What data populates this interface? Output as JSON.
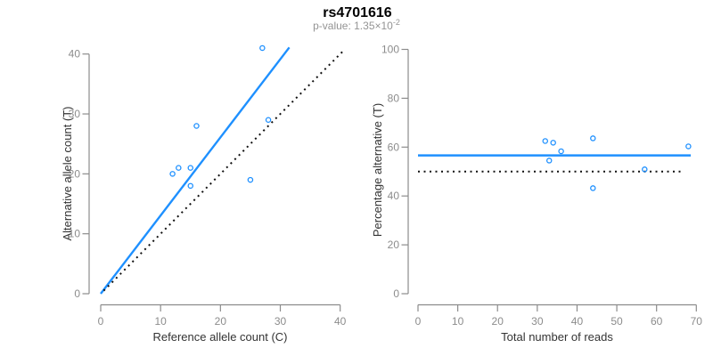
{
  "title": "rs4701616",
  "subtitle": {
    "main": "p-value: 1.35×10",
    "exponent": "-2"
  },
  "colors": {
    "accent_blue": "#1E90FF",
    "dotted_black": "#111111",
    "axis_gray": "#8C8C8C",
    "tick_label_gray": "#8C8C8C",
    "axis_label_dark": "#333333",
    "title_black": "#000000",
    "subtitle_gray": "#949494",
    "background": "#FFFFFF"
  },
  "chart_data": [
    {
      "type": "scatter",
      "panel": "left",
      "xlabel": "Reference allele count (C)",
      "ylabel": "Alternative allele count (T)",
      "xlim": [
        0,
        40
      ],
      "ylim": [
        0,
        40
      ],
      "xticks": [
        0,
        10,
        20,
        30,
        40
      ],
      "yticks": [
        0,
        10,
        20,
        30,
        40
      ],
      "grid": false,
      "legend": null,
      "points": [
        [
          12,
          20
        ],
        [
          13,
          21
        ],
        [
          15,
          21
        ],
        [
          15,
          18
        ],
        [
          16,
          28
        ],
        [
          25,
          19
        ],
        [
          27,
          41
        ],
        [
          28,
          29
        ]
      ],
      "lines": [
        {
          "name": "fit",
          "style": "solid",
          "color": "blue",
          "x1": 0,
          "y1": 0,
          "x2": 31.5,
          "y2": 41.1
        },
        {
          "name": "identity",
          "style": "dotted",
          "color": "black",
          "x1": 0.5,
          "y1": 0.5,
          "x2": 40.7,
          "y2": 40.7
        }
      ]
    },
    {
      "type": "scatter",
      "panel": "right",
      "xlabel": "Total number of reads",
      "ylabel": "Percentage alternative (T)",
      "xlim": [
        0,
        70
      ],
      "ylim": [
        0,
        100
      ],
      "xticks": [
        0,
        10,
        20,
        30,
        40,
        50,
        60,
        70
      ],
      "yticks": [
        0,
        20,
        40,
        60,
        80,
        100
      ],
      "grid": false,
      "legend": null,
      "points": [
        [
          32,
          62.5
        ],
        [
          33,
          54.5
        ],
        [
          34,
          61.8
        ],
        [
          36,
          58.3
        ],
        [
          44,
          63.6
        ],
        [
          44,
          43.2
        ],
        [
          57,
          50.9
        ],
        [
          68,
          60.3
        ]
      ],
      "lines": [
        {
          "name": "fit",
          "style": "solid",
          "color": "blue",
          "x1": 0,
          "y1": 56.6,
          "x2": 68.6,
          "y2": 56.6
        },
        {
          "name": "expected",
          "style": "dotted",
          "color": "black",
          "x1": 0,
          "y1": 50,
          "x2": 67,
          "y2": 50
        }
      ]
    }
  ]
}
